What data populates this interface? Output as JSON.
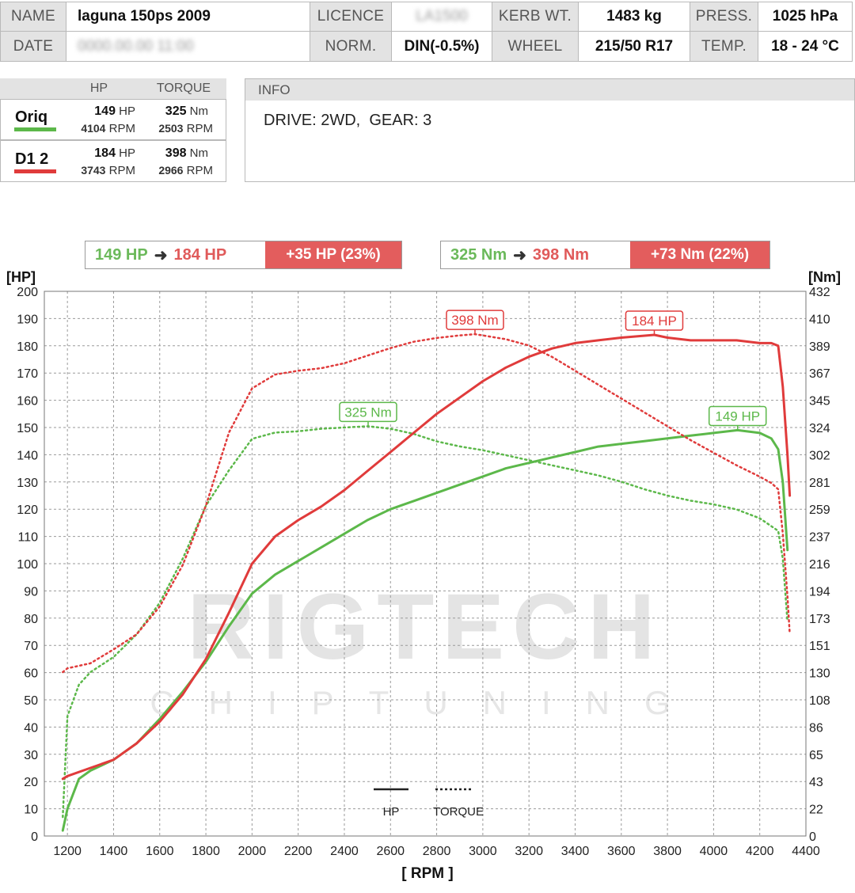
{
  "header": {
    "name_label": "NAME",
    "name_value": "laguna 150ps 2009",
    "licence_label": "LICENCE",
    "licence_value": "LA1500",
    "kerb_label": "KERB WT.",
    "kerb_value": "1483 kg",
    "press_label": "PRESS.",
    "press_value": "1025 hPa",
    "date_label": "DATE",
    "date_value": "0000.00.00 11:00",
    "norm_label": "NORM.",
    "norm_value": "DIN(-0.5%)",
    "wheel_label": "WHEEL",
    "wheel_value": "215/50 R17",
    "temp_label": "TEMP.",
    "temp_value": "18 - 24 °C"
  },
  "summary": {
    "hp_header": "HP",
    "torque_header": "TORQUE",
    "runs": [
      {
        "name": "Oriq",
        "color": "#5cb84a",
        "hp": "149",
        "hp_unit": "HP",
        "hp_rpm": "4104",
        "torque": "325",
        "torque_unit": "Nm",
        "torque_rpm": "2503",
        "rpm_unit": "RPM"
      },
      {
        "name": "D1 2",
        "color": "#e03b3b",
        "hp": "184",
        "hp_unit": "HP",
        "hp_rpm": "3743",
        "torque": "398",
        "torque_unit": "Nm",
        "torque_rpm": "2966",
        "rpm_unit": "RPM"
      }
    ]
  },
  "info": {
    "title": "INFO",
    "text": "DRIVE: 2WD,  GEAR: 3"
  },
  "compare": {
    "hp": {
      "from": "149 HP",
      "arrow": "➜",
      "to": "184 HP",
      "delta": "+35 HP  (23%)"
    },
    "torque": {
      "from": "325 Nm",
      "arrow": "➜",
      "to": "398 Nm",
      "delta": "+73 Nm  (22%)"
    }
  },
  "watermark": {
    "main": "RIGTECH",
    "sub": "CHIPTUNING"
  },
  "chart_data": {
    "type": "line",
    "ylabel_left": "[HP]",
    "ylabel_right": "[Nm]",
    "xlabel": "[ RPM ]",
    "xlim": [
      1100,
      4400
    ],
    "ylim_left": [
      0,
      200
    ],
    "ylim_right": [
      0,
      432
    ],
    "x_ticks": [
      1200,
      1400,
      1600,
      1800,
      2000,
      2200,
      2400,
      2600,
      2800,
      3000,
      3200,
      3400,
      3600,
      3800,
      4000,
      4200,
      4400
    ],
    "y_ticks_left": [
      0,
      10,
      20,
      30,
      40,
      50,
      60,
      70,
      80,
      90,
      100,
      110,
      120,
      130,
      140,
      150,
      160,
      170,
      180,
      190,
      200
    ],
    "y_ticks_right": [
      0,
      22,
      43,
      65,
      86,
      108,
      130,
      151,
      173,
      194,
      216,
      237,
      259,
      281,
      302,
      324,
      345,
      367,
      389,
      410,
      432
    ],
    "grid": true,
    "legend": {
      "hp": "HP",
      "torque": "TORQUE",
      "position": "bottom-center"
    },
    "colors": {
      "oriq": "#5cb84a",
      "tuned": "#e03b3b"
    },
    "series": [
      {
        "name": "Oriq",
        "kind": "HP",
        "axis": "left",
        "x": [
          1180,
          1200,
          1250,
          1300,
          1400,
          1500,
          1600,
          1700,
          1800,
          1900,
          2000,
          2100,
          2200,
          2300,
          2400,
          2500,
          2600,
          2700,
          2800,
          2900,
          3000,
          3100,
          3200,
          3300,
          3400,
          3500,
          3600,
          3700,
          3800,
          3900,
          4000,
          4104,
          4200,
          4250,
          4280,
          4300,
          4320
        ],
        "values": [
          2,
          10,
          21,
          24,
          28,
          34,
          43,
          53,
          64,
          77,
          89,
          96,
          101,
          106,
          111,
          116,
          120,
          123,
          126,
          129,
          132,
          135,
          137,
          139,
          141,
          143,
          144,
          145,
          146,
          147,
          148,
          149,
          148,
          146,
          142,
          130,
          105
        ]
      },
      {
        "name": "Oriq",
        "kind": "TORQUE",
        "axis": "right",
        "x": [
          1180,
          1200,
          1250,
          1300,
          1400,
          1500,
          1600,
          1700,
          1800,
          1900,
          2000,
          2100,
          2200,
          2300,
          2400,
          2503,
          2600,
          2700,
          2800,
          2900,
          3000,
          3100,
          3200,
          3300,
          3400,
          3500,
          3600,
          3700,
          3800,
          3900,
          4000,
          4100,
          4200,
          4280,
          4300,
          4320
        ],
        "values": [
          15,
          95,
          120,
          130,
          142,
          160,
          185,
          220,
          262,
          290,
          315,
          320,
          321,
          323,
          324,
          325,
          323,
          319,
          313,
          309,
          306,
          302,
          298,
          294,
          290,
          286,
          281,
          275,
          270,
          266,
          263,
          259,
          252,
          242,
          220,
          170
        ]
      },
      {
        "name": "D1 2",
        "kind": "HP",
        "axis": "left",
        "x": [
          1180,
          1200,
          1300,
          1400,
          1500,
          1600,
          1700,
          1800,
          1900,
          2000,
          2100,
          2200,
          2300,
          2400,
          2500,
          2600,
          2700,
          2800,
          2900,
          3000,
          3100,
          3200,
          3300,
          3400,
          3500,
          3600,
          3743,
          3800,
          3900,
          4000,
          4100,
          4200,
          4250,
          4280,
          4300,
          4320,
          4330
        ],
        "values": [
          21,
          22,
          25,
          28,
          34,
          42,
          52,
          65,
          82,
          100,
          110,
          116,
          121,
          127,
          134,
          141,
          148,
          155,
          161,
          167,
          172,
          176,
          179,
          181,
          182,
          183,
          184,
          183,
          182,
          182,
          182,
          181,
          181,
          180,
          165,
          140,
          125
        ]
      },
      {
        "name": "D1 2",
        "kind": "TORQUE",
        "axis": "right",
        "x": [
          1180,
          1200,
          1300,
          1400,
          1500,
          1600,
          1700,
          1800,
          1900,
          2000,
          2100,
          2200,
          2300,
          2400,
          2500,
          2600,
          2700,
          2800,
          2900,
          2966,
          3000,
          3100,
          3200,
          3300,
          3400,
          3500,
          3600,
          3700,
          3800,
          3900,
          4000,
          4100,
          4200,
          4250,
          4280,
          4300,
          4320,
          4330
        ],
        "values": [
          130,
          133,
          137,
          148,
          160,
          182,
          215,
          262,
          320,
          355,
          366,
          369,
          371,
          375,
          381,
          387,
          392,
          395,
          397,
          398,
          397,
          394,
          389,
          380,
          369,
          358,
          347,
          336,
          325,
          314,
          304,
          294,
          285,
          280,
          275,
          240,
          190,
          160
        ]
      }
    ],
    "annotations": [
      {
        "text": "398 Nm",
        "x": 2966,
        "axis": "right",
        "value": 398,
        "color": "#e03b3b"
      },
      {
        "text": "184 HP",
        "x": 3743,
        "axis": "left",
        "value": 184,
        "color": "#e03b3b"
      },
      {
        "text": "325 Nm",
        "x": 2503,
        "axis": "right",
        "value": 325,
        "color": "#5cb84a"
      },
      {
        "text": "149 HP",
        "x": 4104,
        "axis": "left",
        "value": 149,
        "color": "#5cb84a"
      }
    ]
  }
}
